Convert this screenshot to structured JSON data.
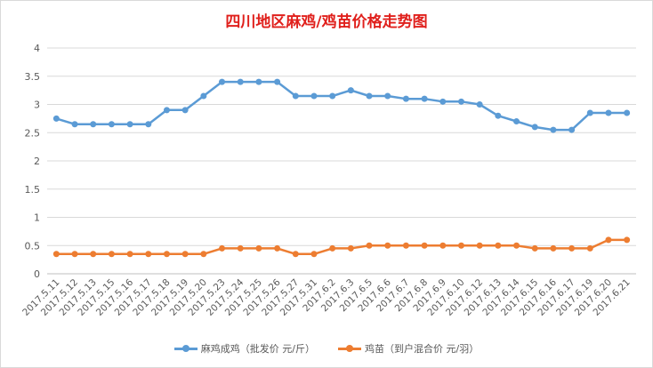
{
  "chart_data": {
    "type": "line",
    "title": "四川地区麻鸡/鸡苗价格走势图",
    "xlabel": "",
    "ylabel": "",
    "ylim": [
      0,
      4
    ],
    "yticks": [
      "0",
      "0.5",
      "1",
      "1.5",
      "2",
      "2.5",
      "3",
      "3.5",
      "4"
    ],
    "grid": true,
    "legend_position": "bottom",
    "categories": [
      "2017.5.11",
      "2017.5.12",
      "2017.5.13",
      "2017.5.15",
      "2017.5.16",
      "2017.5.17",
      "2017.5.18",
      "2017.5.19",
      "2017.5.20",
      "2017.5.23",
      "2017.5.24",
      "2017.5.25",
      "2017.5.26",
      "2017.5.27",
      "2017.5.31",
      "2017.6.2",
      "2017.6.3",
      "2017.6.5",
      "2017.6.6",
      "2017.6.7",
      "2017.6.8",
      "2017.6.9",
      "2017.6.10",
      "2017.6.12",
      "2017.6.13",
      "2017.6.14",
      "2017.6.15",
      "2017.6.16",
      "2017.6.17",
      "2017.6.19",
      "2017.6.20",
      "2017.6.21"
    ],
    "series": [
      {
        "name": "麻鸡成鸡（批发价 元/斤）",
        "color": "#5b9bd5",
        "values": [
          2.75,
          2.65,
          2.65,
          2.65,
          2.65,
          2.65,
          2.9,
          2.9,
          3.15,
          3.4,
          3.4,
          3.4,
          3.4,
          3.15,
          3.15,
          3.15,
          3.25,
          3.15,
          3.15,
          3.1,
          3.1,
          3.05,
          3.05,
          3.0,
          2.8,
          2.7,
          2.6,
          2.55,
          2.55,
          2.85,
          2.85,
          2.85
        ]
      },
      {
        "name": "鸡苗（到户混合价 元/羽）",
        "color": "#ed7d31",
        "values": [
          0.35,
          0.35,
          0.35,
          0.35,
          0.35,
          0.35,
          0.35,
          0.35,
          0.35,
          0.45,
          0.45,
          0.45,
          0.45,
          0.35,
          0.35,
          0.45,
          0.45,
          0.5,
          0.5,
          0.5,
          0.5,
          0.5,
          0.5,
          0.5,
          0.5,
          0.5,
          0.45,
          0.45,
          0.45,
          0.45,
          0.6,
          0.6
        ]
      }
    ]
  }
}
